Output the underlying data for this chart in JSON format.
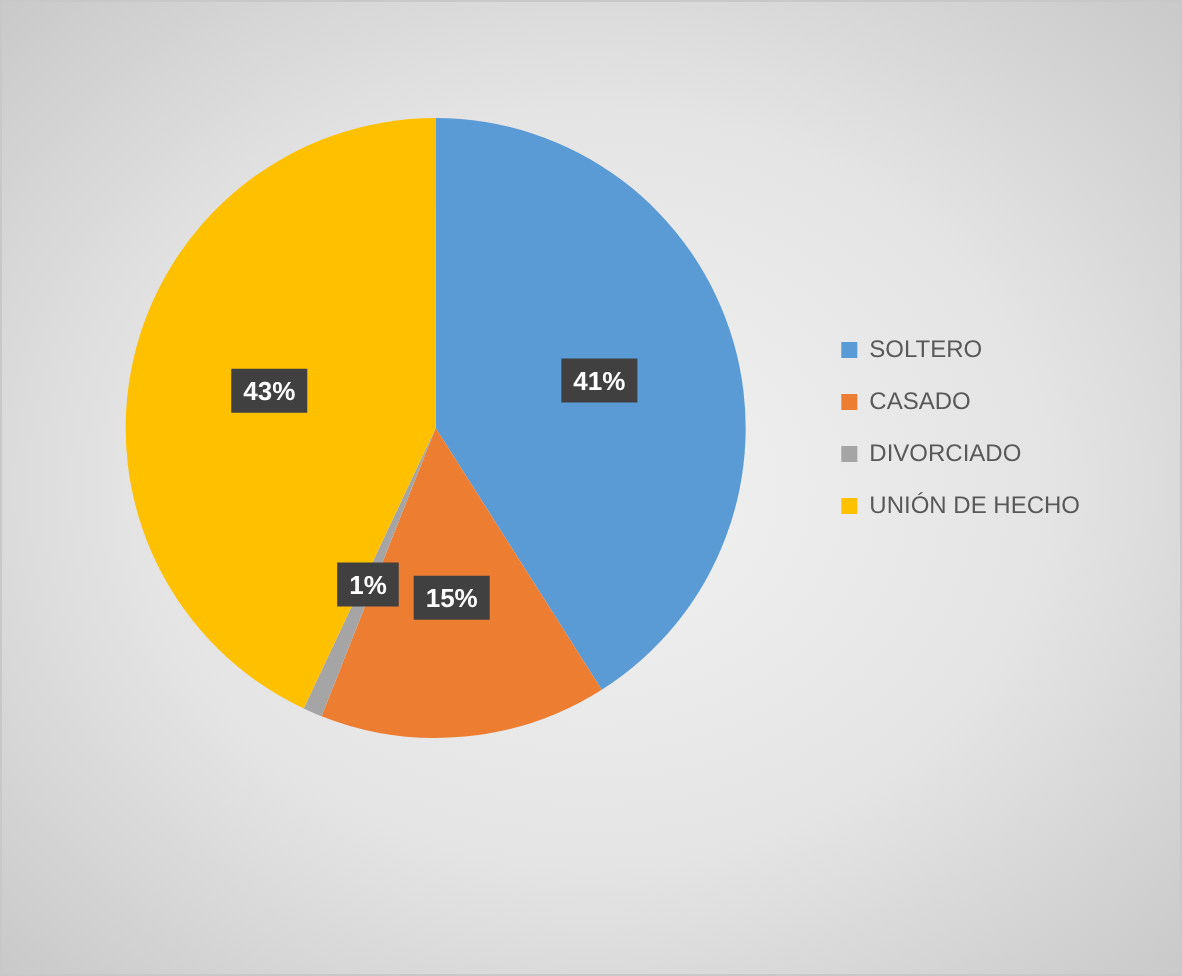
{
  "chart_data": {
    "type": "pie",
    "categories": [
      "SOLTERO",
      "CASADO",
      "DIVORCIADO",
      "UNIÓN DE HECHO"
    ],
    "values": [
      41,
      15,
      1,
      43
    ],
    "colors": [
      "#5b9bd5",
      "#ed7d31",
      "#a5a5a5",
      "#ffc000"
    ],
    "value_labels": [
      "41%",
      "15%",
      "1%",
      "43%"
    ],
    "legend": "right"
  }
}
